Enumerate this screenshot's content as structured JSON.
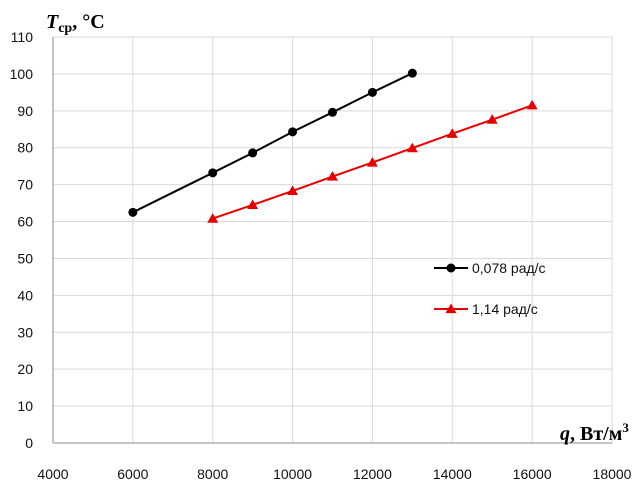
{
  "chart_data": {
    "type": "line",
    "xlabel": {
      "symbol": "q",
      "unit": ", Вт/м",
      "sup": "3"
    },
    "ylabel": {
      "symbol": "T",
      "sub": "ср",
      "unit": ", °C"
    },
    "xlim": [
      4000,
      18000
    ],
    "ylim": [
      0,
      110
    ],
    "xticks": [
      4000,
      6000,
      8000,
      10000,
      12000,
      14000,
      16000,
      18000
    ],
    "yticks": [
      0,
      10,
      20,
      30,
      40,
      50,
      60,
      70,
      80,
      90,
      100,
      110
    ],
    "grid": true,
    "legend_position": "right",
    "series": [
      {
        "name": "0,078 рад/с",
        "color": "#000000",
        "marker": "circle",
        "x": [
          6000,
          8000,
          9000,
          10000,
          11000,
          12000,
          13000
        ],
        "y": [
          62.5,
          73.2,
          78.6,
          84.3,
          89.6,
          95.0,
          100.2
        ]
      },
      {
        "name": "1,14 рад/с",
        "color": "#e60000",
        "marker": "triangle",
        "x": [
          8000,
          9000,
          10000,
          11000,
          12000,
          13000,
          14000,
          15000,
          16000
        ],
        "y": [
          60.8,
          64.5,
          68.3,
          72.2,
          76.0,
          79.9,
          83.8,
          87.6,
          91.5
        ]
      }
    ]
  }
}
